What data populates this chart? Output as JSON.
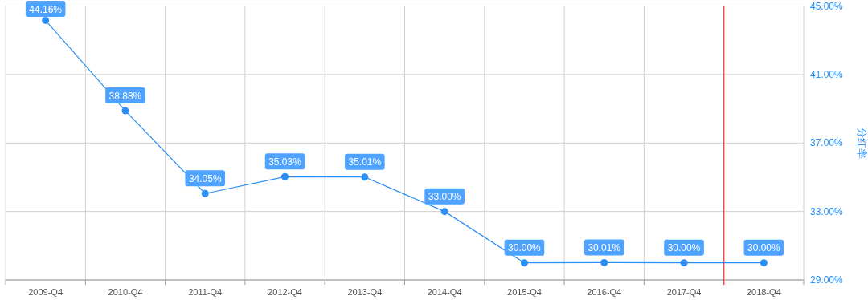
{
  "chart_data": {
    "type": "line",
    "categories": [
      "2009-Q4",
      "2010-Q4",
      "2011-Q4",
      "2012-Q4",
      "2013-Q4",
      "2014-Q4",
      "2015-Q4",
      "2016-Q4",
      "2017-Q4",
      "2018-Q4"
    ],
    "series": [
      {
        "color": "#2b8ff5",
        "values": [
          44.16,
          38.88,
          34.05,
          35.03,
          35.01,
          33.0,
          30.0,
          30.01,
          30.0,
          30.0
        ],
        "value_labels": [
          "44.16%",
          "38.88%",
          "34.05%",
          "35.03%",
          "35.01%",
          "33.00%",
          "30.00%",
          "30.01%",
          "30.00%",
          "30.00%"
        ]
      }
    ],
    "ylabel": "分红率",
    "ylim": [
      29,
      45
    ],
    "yticks": [
      {
        "value": 29,
        "label": "29.00%"
      },
      {
        "value": 33,
        "label": "33.00%"
      },
      {
        "value": 37,
        "label": "37.00%"
      },
      {
        "value": 41,
        "label": "41.00%"
      },
      {
        "value": 45,
        "label": "45.00%"
      }
    ],
    "ref_lines": [
      {
        "axis": "x",
        "value": "2018-Q4",
        "color": "#ff3333"
      }
    ],
    "grid": true,
    "marker": "circle",
    "line_style": "solid"
  }
}
